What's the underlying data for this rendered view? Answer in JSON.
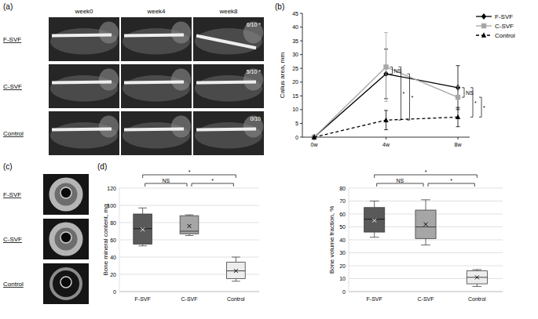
{
  "panel_labels": [
    "(a)",
    "(b)",
    "(c)",
    "(d)"
  ],
  "xray": {
    "columns": [
      "week0",
      "week4",
      "week8"
    ],
    "rows": [
      {
        "label": "F-SVF",
        "union": "6/10 *"
      },
      {
        "label": "C-SVF",
        "union": "5/10 *"
      },
      {
        "label": "Control",
        "union": "0/10"
      }
    ]
  },
  "ct": {
    "rows": [
      "F-SVF",
      "C-SVF",
      "Control"
    ]
  },
  "chart_data": [
    {
      "type": "line",
      "y_label": "Callus area, mm",
      "categories": [
        "0w",
        "4w",
        "8w"
      ],
      "ylim": [
        0,
        45
      ],
      "yticks": [
        0,
        5,
        10,
        15,
        20,
        25,
        30,
        35,
        40,
        45
      ],
      "legend": "right",
      "series": [
        {
          "name": "F-SVF",
          "color": "#000000",
          "marker": "diamond",
          "line_style": "solid",
          "values": [
            0,
            23,
            18
          ],
          "errors": [
            0,
            9,
            8
          ]
        },
        {
          "name": "C-SVF",
          "color": "#a6a6a6",
          "marker": "square",
          "line_style": "solid",
          "values": [
            0,
            25.5,
            14.5
          ],
          "errors": [
            0,
            12.5,
            4
          ]
        },
        {
          "name": "Control",
          "color": "#000000",
          "marker": "triangle",
          "line_style": "dashed",
          "values": [
            0,
            6.2,
            7.3
          ],
          "errors": [
            0,
            3.5,
            3.5
          ]
        }
      ],
      "annotations": [
        {
          "at": "4w",
          "between": [
            "F-SVF",
            "C-SVF"
          ],
          "label": "NS"
        },
        {
          "at": "4w",
          "between": [
            "C-SVF",
            "Control"
          ],
          "label": "*"
        },
        {
          "at": "4w",
          "between": [
            "F-SVF",
            "Control"
          ],
          "label": "*"
        },
        {
          "at": "8w",
          "between": [
            "F-SVF",
            "C-SVF"
          ],
          "label": "NS"
        },
        {
          "at": "8w",
          "between": [
            "F-SVF",
            "Control"
          ],
          "label": "*"
        },
        {
          "at": "8w",
          "between": [
            "C-SVF",
            "Control"
          ],
          "label": "*"
        }
      ]
    },
    {
      "type": "box",
      "y_label": "Bone mineral content, mg",
      "categories": [
        "F-SVF",
        "C-SVF",
        "Control"
      ],
      "colors": [
        "#595959",
        "#a6a6a6",
        "#ededed"
      ],
      "ylim": [
        0,
        120
      ],
      "yticks": [
        0,
        20,
        40,
        60,
        80,
        100,
        120
      ],
      "grid": true,
      "boxes": [
        {
          "min": 53,
          "q1": 55,
          "median": 73,
          "q3": 90,
          "max": 97,
          "mean": 72
        },
        {
          "min": 65,
          "q1": 67,
          "median": 70,
          "q3": 88,
          "max": 89,
          "mean": 76
        },
        {
          "min": 12,
          "q1": 15,
          "median": 24,
          "q3": 34,
          "max": 40,
          "mean": 24
        }
      ],
      "annotations": [
        {
          "between": [
            "F-SVF",
            "C-SVF"
          ],
          "label": "NS"
        },
        {
          "between": [
            "C-SVF",
            "Control"
          ],
          "label": "*"
        },
        {
          "between": [
            "F-SVF",
            "Control"
          ],
          "label": "*"
        }
      ]
    },
    {
      "type": "box",
      "y_label": "Bone volume fraction, %",
      "categories": [
        "F-SVF",
        "C-SVF",
        "Control"
      ],
      "colors": [
        "#595959",
        "#a6a6a6",
        "#ededed"
      ],
      "ylim": [
        0,
        80
      ],
      "yticks": [
        0,
        10,
        20,
        30,
        40,
        50,
        60,
        70,
        80
      ],
      "grid": true,
      "boxes": [
        {
          "min": 42,
          "q1": 46,
          "median": 56,
          "q3": 65,
          "max": 70,
          "mean": 55
        },
        {
          "min": 36,
          "q1": 41,
          "median": 50,
          "q3": 63,
          "max": 71,
          "mean": 52
        },
        {
          "min": 4,
          "q1": 6,
          "median": 11,
          "q3": 16,
          "max": 17,
          "mean": 11
        }
      ],
      "annotations": [
        {
          "between": [
            "F-SVF",
            "C-SVF"
          ],
          "label": "NS"
        },
        {
          "between": [
            "C-SVF",
            "Control"
          ],
          "label": "*"
        },
        {
          "between": [
            "F-SVF",
            "Control"
          ],
          "label": "*"
        }
      ]
    }
  ]
}
